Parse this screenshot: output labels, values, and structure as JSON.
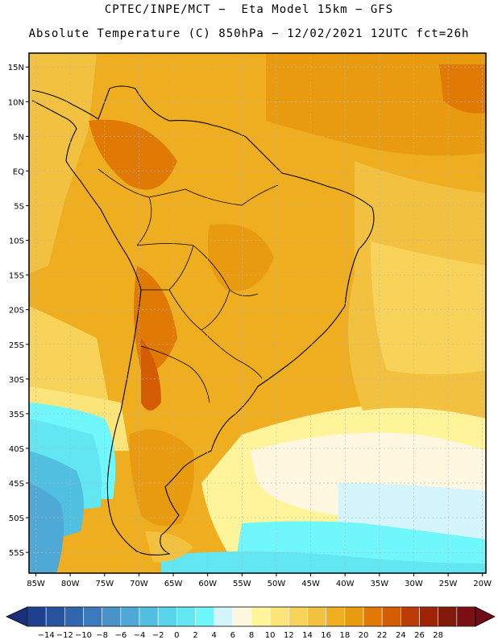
{
  "title": {
    "line1": "CPTEC/INPE/MCT −  Eta Model 15km − GFS",
    "line2": "Absolute Temperature (C) 850hPa − 12/02/2021 12UTC fct=26h"
  },
  "map": {
    "lat_labels": [
      "15N",
      "10N",
      "5N",
      "EQ",
      "5S",
      "10S",
      "15S",
      "20S",
      "25S",
      "30S",
      "35S",
      "40S",
      "45S",
      "50S",
      "55S"
    ],
    "lon_labels": [
      "85W",
      "80W",
      "75W",
      "70W",
      "65W",
      "60W",
      "55W",
      "50W",
      "45W",
      "40W",
      "35W",
      "30W",
      "25W",
      "20W"
    ],
    "lon_range": [
      -86,
      -19.5
    ],
    "lat_range": [
      -58,
      17
    ]
  },
  "colorbar": {
    "labels": [
      "-14",
      "-12",
      "-10",
      "-8",
      "-6",
      "-4",
      "-2",
      "0",
      "2",
      "4",
      "6",
      "8",
      "10",
      "12",
      "14",
      "16",
      "18",
      "20",
      "22",
      "24",
      "26",
      "28"
    ],
    "colors": [
      "#1f3f8f",
      "#27529f",
      "#3066ad",
      "#3a7bbd",
      "#4a93c9",
      "#4fa9d6",
      "#50bfe0",
      "#57d3ea",
      "#61e6f2",
      "#6ff7fb",
      "#d4f5fb",
      "#fff7e0",
      "#fff49a",
      "#fbe57a",
      "#f8d35a",
      "#f3c140",
      "#efad20",
      "#e99b10",
      "#e07a05",
      "#d45c05",
      "#bb3c06",
      "#9e2408",
      "#801a0a",
      "#7a0f14"
    ],
    "min_arrow_color": "#1a2f7a",
    "max_arrow_color": "#6e0c18"
  }
}
